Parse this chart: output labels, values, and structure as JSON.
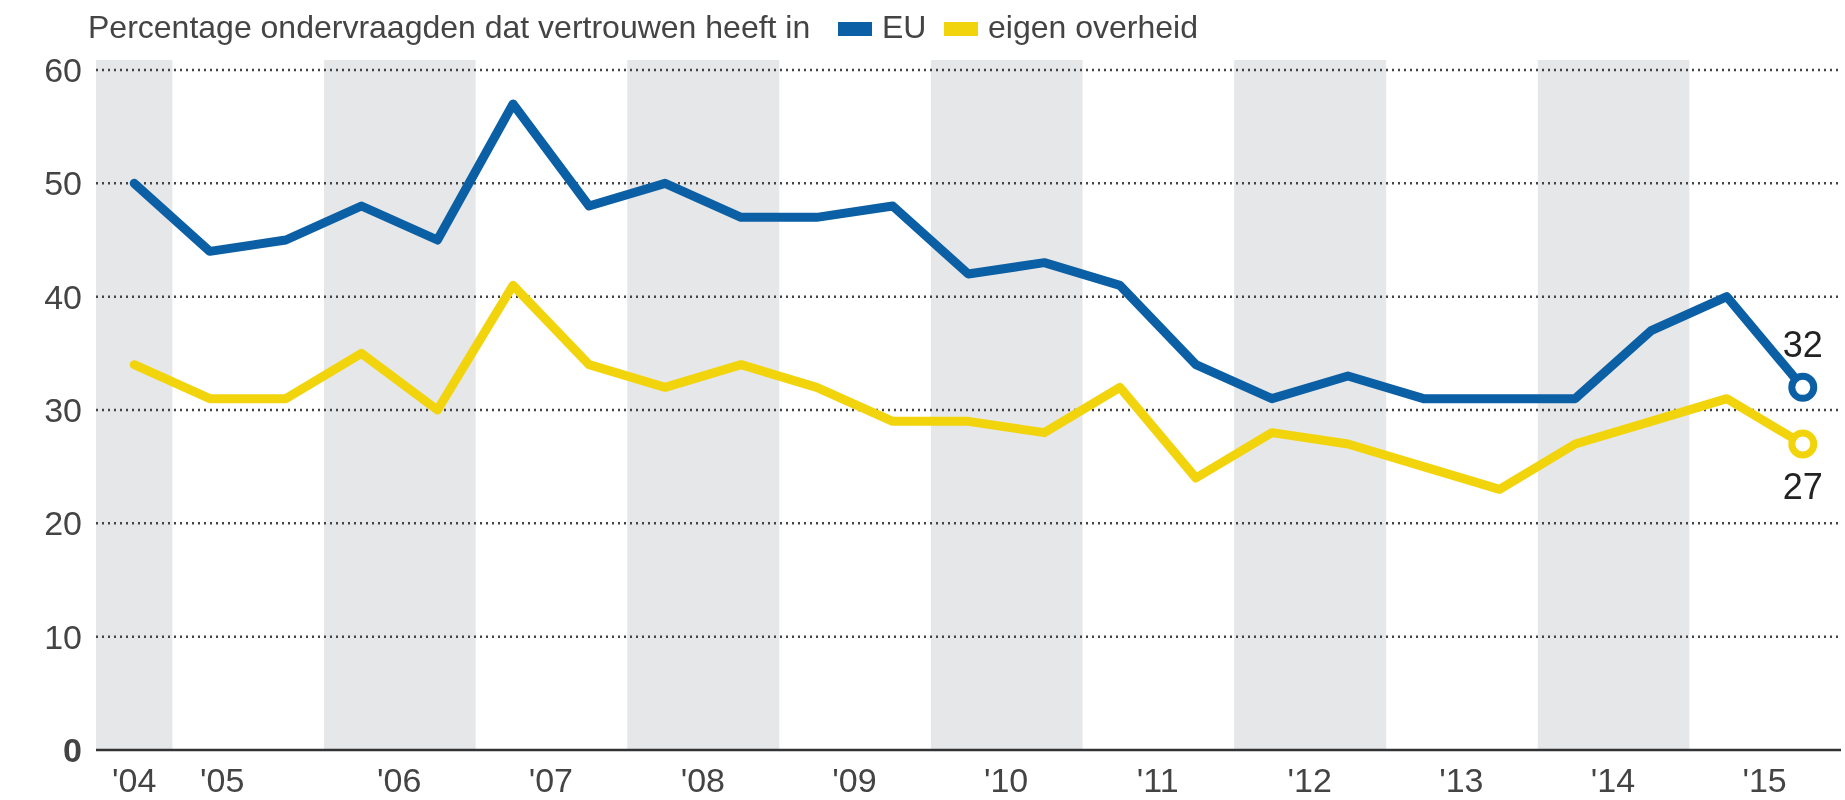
{
  "chart_data": {
    "type": "line",
    "title": "Percentage ondervraagden dat vertrouwen heeft in",
    "x": [
      "2004-10",
      "2005-04",
      "2005-10",
      "2006-04",
      "2006-10",
      "2007-04",
      "2007-10",
      "2008-04",
      "2008-10",
      "2009-04",
      "2009-10",
      "2010-04",
      "2010-10",
      "2011-04",
      "2011-10",
      "2012-04",
      "2012-10",
      "2013-04",
      "2013-10",
      "2014-04",
      "2014-10",
      "2015-04",
      "2015-10"
    ],
    "series": [
      {
        "name": "EU",
        "color": "#0b5fa5",
        "values": [
          50,
          44,
          45,
          48,
          45,
          57,
          48,
          50,
          47,
          47,
          48,
          42,
          43,
          41,
          34,
          31,
          33,
          31,
          31,
          31,
          37,
          40,
          32
        ],
        "value_labels": [
          null,
          null,
          null,
          null,
          null,
          null,
          null,
          null,
          null,
          null,
          null,
          null,
          null,
          null,
          null,
          null,
          null,
          null,
          null,
          null,
          null,
          null,
          "32"
        ]
      },
      {
        "name": "eigen overheid",
        "color": "#f2d40c",
        "values": [
          34,
          31,
          31,
          35,
          30,
          41,
          34,
          32,
          34,
          32,
          29,
          29,
          28,
          32,
          24,
          28,
          27,
          25,
          23,
          27,
          29,
          31,
          27
        ],
        "value_labels": [
          null,
          null,
          null,
          null,
          null,
          null,
          null,
          null,
          null,
          null,
          null,
          null,
          null,
          null,
          null,
          null,
          null,
          null,
          null,
          null,
          null,
          null,
          "27"
        ]
      }
    ],
    "xlim": [
      "2004-07",
      "2016-01"
    ],
    "xticks": [
      {
        "value": "2004-10",
        "label": "'04"
      },
      {
        "value": "2005-05",
        "label": "'05"
      },
      {
        "value": "2006-07",
        "label": "'06"
      },
      {
        "value": "2007-07",
        "label": "'07"
      },
      {
        "value": "2008-07",
        "label": "'08"
      },
      {
        "value": "2009-07",
        "label": "'09"
      },
      {
        "value": "2010-07",
        "label": "'10"
      },
      {
        "value": "2011-07",
        "label": "'11"
      },
      {
        "value": "2012-07",
        "label": "'12"
      },
      {
        "value": "2013-07",
        "label": "'13"
      },
      {
        "value": "2014-07",
        "label": "'14"
      },
      {
        "value": "2015-07",
        "label": "'15"
      }
    ],
    "ylim": [
      0,
      60
    ],
    "yticks": [
      0,
      10,
      20,
      30,
      40,
      50,
      60
    ],
    "bands": [
      {
        "axis": "x",
        "from": "2004-07",
        "to": "2005-01",
        "color": "#e6e7e8"
      },
      {
        "axis": "x",
        "from": "2006-01",
        "to": "2007-01",
        "color": "#e6e7e8"
      },
      {
        "axis": "x",
        "from": "2008-01",
        "to": "2009-01",
        "color": "#e6e7e8"
      },
      {
        "axis": "x",
        "from": "2010-01",
        "to": "2011-01",
        "color": "#e6e7e8"
      },
      {
        "axis": "x",
        "from": "2012-01",
        "to": "2013-01",
        "color": "#e6e7e8"
      },
      {
        "axis": "x",
        "from": "2014-01",
        "to": "2015-01",
        "color": "#e6e7e8"
      }
    ],
    "grid": "y",
    "legend": "top",
    "marker": "none",
    "line_style": "solid"
  }
}
